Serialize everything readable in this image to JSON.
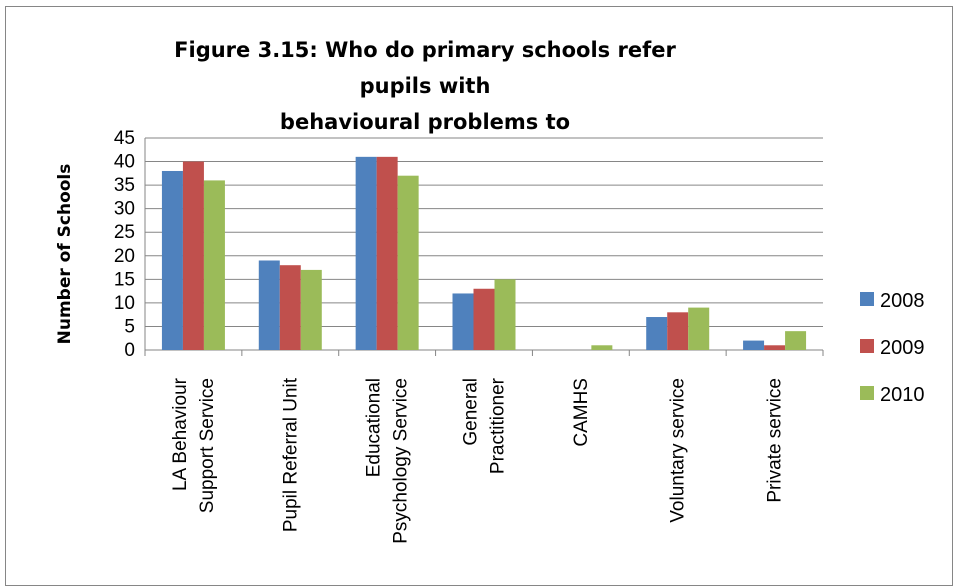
{
  "chart_data": {
    "type": "bar",
    "title": "Figure 3.15: Who do primary schools refer pupils with behavioural problems to",
    "title_lines": [
      "Figure 3.15: Who do primary schools refer pupils with",
      "behavioural problems to"
    ],
    "xlabel": "",
    "ylabel": "Number of Schools",
    "ylim": [
      0,
      45
    ],
    "yticks": [
      0,
      5,
      10,
      15,
      20,
      25,
      30,
      35,
      40,
      45
    ],
    "grid": true,
    "legend_position": "right",
    "categories": [
      [
        "LA Behaviour",
        "Support Service"
      ],
      [
        "Pupil Referral Unit"
      ],
      [
        "Educational",
        "Psychology Service"
      ],
      [
        "General",
        "Practitioner"
      ],
      [
        "CAMHS"
      ],
      [
        "Voluntary service"
      ],
      [
        "Private service"
      ]
    ],
    "series": [
      {
        "name": "2008",
        "color": "#4F81BD",
        "values": [
          38,
          19,
          41,
          12,
          0,
          7,
          2
        ]
      },
      {
        "name": "2009",
        "color": "#C0504D",
        "values": [
          40,
          18,
          41,
          13,
          0,
          8,
          1
        ]
      },
      {
        "name": "2010",
        "color": "#9BBB59",
        "values": [
          36,
          17,
          37,
          15,
          1,
          9,
          4
        ]
      }
    ]
  }
}
